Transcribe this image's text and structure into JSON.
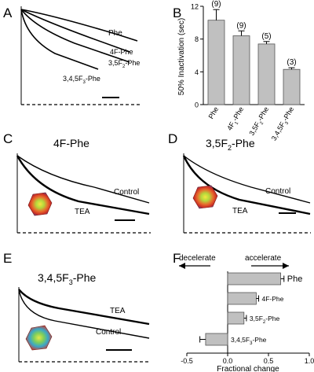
{
  "panels": {
    "A": {
      "letter": "A",
      "traces": [
        "Phe",
        "4F-Phe",
        "3,5F",
        "2",
        "-Phe",
        "3,4,5F",
        "3",
        "-Phe"
      ]
    },
    "C": {
      "letter": "C",
      "title": "4F-Phe",
      "traces": [
        "Control",
        "TEA"
      ]
    },
    "D": {
      "letter": "D",
      "title_main": "3,5F",
      "title_sub": "2",
      "title_end": "-Phe",
      "traces": [
        "Control",
        "TEA"
      ]
    },
    "E": {
      "letter": "E",
      "title_main": "3,4,5F",
      "title_sub": "3",
      "title_end": "-Phe",
      "traces": [
        "TEA",
        "Control"
      ]
    },
    "F": {
      "letter": "F",
      "arrow_left": "decelerate",
      "arrow_right": "accelerate"
    }
  },
  "chart_data": [
    {
      "panel": "B",
      "type": "bar",
      "letter": "B",
      "categories": [
        "Phe",
        "4F-Phe",
        "3,5F2-Phe",
        "3,4,5F3-Phe"
      ],
      "category_labels": [
        {
          "main": "Phe",
          "sub": "",
          "end": ""
        },
        {
          "main": "4F",
          "sub": "1",
          "end": "-Phe"
        },
        {
          "main": "3,5F",
          "sub": "2",
          "end": "-Phe"
        },
        {
          "main": "3,4,5F",
          "sub": "3",
          "end": "-Phe"
        }
      ],
      "values": [
        10.3,
        8.4,
        7.4,
        4.3
      ],
      "errors": [
        1.3,
        0.6,
        0.3,
        0.2
      ],
      "n_labels": [
        "(9)",
        "(9)",
        "(5)",
        "(3)"
      ],
      "ylabel": "50% Inactivation (sec)",
      "ylim": [
        0,
        12
      ],
      "yticks": [
        "0",
        "4",
        "8",
        "12"
      ],
      "grid": false,
      "bar_color": "#c0c0c0"
    },
    {
      "panel": "F",
      "type": "bar",
      "letter": "F",
      "orientation": "horizontal",
      "categories": [
        "Phe",
        "4F-Phe",
        "3,5F2-Phe",
        "3,4,5F3-Phe"
      ],
      "category_labels": [
        {
          "main": "Phe",
          "sub": "",
          "end": ""
        },
        {
          "main": "4F-Phe",
          "sub": "",
          "end": ""
        },
        {
          "main": "3,5F",
          "sub": "2",
          "end": "-Phe"
        },
        {
          "main": "3,4,5F",
          "sub": "3",
          "end": "-Phe"
        }
      ],
      "values": [
        0.65,
        0.35,
        0.2,
        -0.27
      ],
      "errors": [
        0.04,
        0.03,
        0.03,
        0.07
      ],
      "xlabel": "Fractional change",
      "xlim": [
        -0.5,
        1.0
      ],
      "xticks": [
        "-0.5",
        "0.0",
        "0.5",
        "1.0"
      ],
      "grid": false,
      "bar_color": "#c0c0c0"
    }
  ]
}
